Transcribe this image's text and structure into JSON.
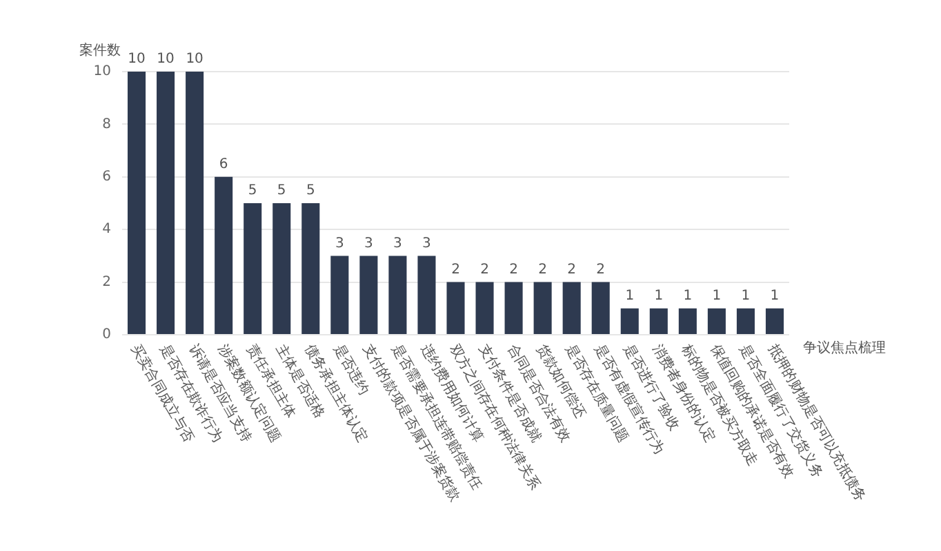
{
  "chart_data": {
    "type": "bar",
    "ylabel": "案件数",
    "xlabel": "争议焦点梳理",
    "categories": [
      "买卖合同成立与否",
      "是否存在欺诈行为",
      "诉请是否应当支持",
      "涉案数额认定问题",
      "责任承担主体",
      "主体是否适格",
      "债务承担主体认定",
      "是否违约",
      "支付的款项是否属于涉案货款",
      "是否需要承担连带赔偿责任",
      "违约费用如何计算",
      "双方之间存在何种法律关系",
      "支付条件是否成就",
      "合同是否合法有效",
      "货款如何偿还",
      "是否存在质量问题",
      "是否有虚假宣传行为",
      "是否进行了验收",
      "消费者身份的认定",
      "标的物是否被买方取走",
      "保值回购的承诺是否有效",
      "是否全面履行了交货义务",
      "抵押的财物是否可以充抵债务"
    ],
    "values": [
      10,
      10,
      10,
      6,
      5,
      5,
      5,
      3,
      3,
      3,
      3,
      2,
      2,
      2,
      2,
      2,
      2,
      1,
      1,
      1,
      1,
      1,
      1
    ],
    "color": "#2e3a50",
    "ylim": [
      0,
      10
    ],
    "yticks": [
      0,
      2,
      4,
      6,
      8,
      10
    ],
    "grid": "y",
    "data_labels": true
  }
}
